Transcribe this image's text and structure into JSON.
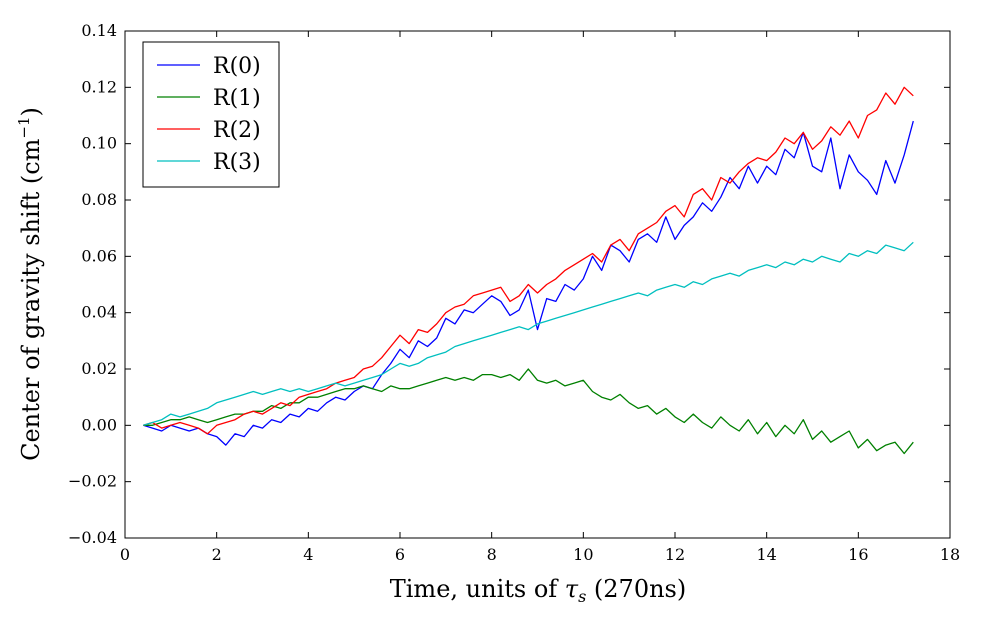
{
  "chart_data": {
    "type": "line",
    "title": "",
    "xlabel": "Time, units of τs (270ns)",
    "xlabel_parts": {
      "main": "Time, units of ",
      "symbol": "τ",
      "subscript": "s",
      "tail": " (270ns)"
    },
    "ylabel": "Center of gravity shift (cm−1)",
    "ylabel_parts": {
      "main": "Center of gravity shift (cm",
      "superscript": "−1",
      "tail": ")"
    },
    "xlim": [
      0,
      18
    ],
    "ylim": [
      -0.04,
      0.14
    ],
    "xticks": [
      "0",
      "2",
      "4",
      "6",
      "8",
      "10",
      "12",
      "14",
      "16",
      "18"
    ],
    "xtick_values": [
      0,
      2,
      4,
      6,
      8,
      10,
      12,
      14,
      16,
      18
    ],
    "yticks": [
      "−0.04",
      "−0.02",
      "0.00",
      "0.02",
      "0.04",
      "0.06",
      "0.08",
      "0.10",
      "0.12",
      "0.14"
    ],
    "ytick_values": [
      -0.04,
      -0.02,
      0.0,
      0.02,
      0.04,
      0.06,
      0.08,
      0.1,
      0.12,
      0.14
    ],
    "grid": false,
    "legend_position": "top-left",
    "x": [
      0.4,
      0.6,
      0.8,
      1.0,
      1.2,
      1.4,
      1.6,
      1.8,
      2.0,
      2.2,
      2.4,
      2.6,
      2.8,
      3.0,
      3.2,
      3.4,
      3.6,
      3.8,
      4.0,
      4.2,
      4.4,
      4.6,
      4.8,
      5.0,
      5.2,
      5.4,
      5.6,
      5.8,
      6.0,
      6.2,
      6.4,
      6.6,
      6.8,
      7.0,
      7.2,
      7.4,
      7.6,
      7.8,
      8.0,
      8.2,
      8.4,
      8.6,
      8.8,
      9.0,
      9.2,
      9.4,
      9.6,
      9.8,
      10.0,
      10.2,
      10.4,
      10.6,
      10.8,
      11.0,
      11.2,
      11.4,
      11.6,
      11.8,
      12.0,
      12.2,
      12.4,
      12.6,
      12.8,
      13.0,
      13.2,
      13.4,
      13.6,
      13.8,
      14.0,
      14.2,
      14.4,
      14.6,
      14.8,
      15.0,
      15.2,
      15.4,
      15.6,
      15.8,
      16.0,
      16.2,
      16.4,
      16.6,
      16.8,
      17.0,
      17.2
    ],
    "series": [
      {
        "name": "R(0)",
        "color": "#0000ff",
        "values": [
          0.0,
          -0.001,
          -0.002,
          0.0,
          -0.001,
          -0.002,
          -0.001,
          -0.003,
          -0.004,
          -0.007,
          -0.003,
          -0.004,
          0.0,
          -0.001,
          0.002,
          0.001,
          0.004,
          0.003,
          0.006,
          0.005,
          0.008,
          0.01,
          0.009,
          0.012,
          0.014,
          0.013,
          0.018,
          0.022,
          0.027,
          0.024,
          0.03,
          0.028,
          0.031,
          0.038,
          0.036,
          0.041,
          0.04,
          0.043,
          0.046,
          0.044,
          0.039,
          0.041,
          0.048,
          0.034,
          0.045,
          0.044,
          0.05,
          0.048,
          0.052,
          0.06,
          0.055,
          0.064,
          0.062,
          0.058,
          0.066,
          0.068,
          0.065,
          0.074,
          0.066,
          0.071,
          0.074,
          0.079,
          0.076,
          0.081,
          0.088,
          0.084,
          0.092,
          0.086,
          0.092,
          0.089,
          0.098,
          0.095,
          0.104,
          0.092,
          0.09,
          0.102,
          0.084,
          0.096,
          0.09,
          0.087,
          0.082,
          0.094,
          0.086,
          0.096,
          0.108
        ]
      },
      {
        "name": "R(1)",
        "color": "#008000",
        "values": [
          0.0,
          0.0,
          0.001,
          0.002,
          0.002,
          0.003,
          0.002,
          0.001,
          0.002,
          0.003,
          0.004,
          0.004,
          0.005,
          0.005,
          0.007,
          0.006,
          0.008,
          0.008,
          0.01,
          0.01,
          0.011,
          0.012,
          0.013,
          0.013,
          0.014,
          0.013,
          0.012,
          0.014,
          0.013,
          0.013,
          0.014,
          0.015,
          0.016,
          0.017,
          0.016,
          0.017,
          0.016,
          0.018,
          0.018,
          0.017,
          0.018,
          0.016,
          0.02,
          0.016,
          0.015,
          0.016,
          0.014,
          0.015,
          0.016,
          0.012,
          0.01,
          0.009,
          0.011,
          0.008,
          0.006,
          0.007,
          0.004,
          0.006,
          0.003,
          0.001,
          0.004,
          0.001,
          -0.001,
          0.003,
          0.0,
          -0.002,
          0.002,
          -0.003,
          0.001,
          -0.004,
          0.0,
          -0.003,
          0.002,
          -0.005,
          -0.002,
          -0.006,
          -0.004,
          -0.002,
          -0.008,
          -0.005,
          -0.009,
          -0.007,
          -0.006,
          -0.01,
          -0.006
        ]
      },
      {
        "name": "R(2)",
        "color": "#ff0000",
        "values": [
          0.0,
          0.001,
          -0.001,
          0.0,
          0.001,
          0.0,
          -0.001,
          -0.003,
          0.0,
          0.001,
          0.002,
          0.004,
          0.005,
          0.004,
          0.006,
          0.008,
          0.007,
          0.01,
          0.011,
          0.012,
          0.013,
          0.015,
          0.016,
          0.017,
          0.02,
          0.021,
          0.024,
          0.028,
          0.032,
          0.029,
          0.034,
          0.033,
          0.036,
          0.04,
          0.042,
          0.043,
          0.046,
          0.047,
          0.048,
          0.049,
          0.044,
          0.046,
          0.05,
          0.047,
          0.05,
          0.052,
          0.055,
          0.057,
          0.059,
          0.061,
          0.058,
          0.064,
          0.066,
          0.062,
          0.068,
          0.07,
          0.072,
          0.076,
          0.078,
          0.074,
          0.082,
          0.084,
          0.08,
          0.088,
          0.086,
          0.09,
          0.093,
          0.095,
          0.094,
          0.097,
          0.102,
          0.1,
          0.104,
          0.098,
          0.101,
          0.106,
          0.103,
          0.108,
          0.102,
          0.11,
          0.112,
          0.118,
          0.114,
          0.12,
          0.117
        ]
      },
      {
        "name": "R(3)",
        "color": "#00bfbf",
        "values": [
          0.0,
          0.001,
          0.002,
          0.004,
          0.003,
          0.004,
          0.005,
          0.006,
          0.008,
          0.009,
          0.01,
          0.011,
          0.012,
          0.011,
          0.012,
          0.013,
          0.012,
          0.013,
          0.012,
          0.013,
          0.014,
          0.015,
          0.014,
          0.015,
          0.016,
          0.017,
          0.018,
          0.02,
          0.022,
          0.021,
          0.022,
          0.024,
          0.025,
          0.026,
          0.028,
          0.029,
          0.03,
          0.031,
          0.032,
          0.033,
          0.034,
          0.035,
          0.034,
          0.036,
          0.037,
          0.038,
          0.039,
          0.04,
          0.041,
          0.042,
          0.043,
          0.044,
          0.045,
          0.046,
          0.047,
          0.046,
          0.048,
          0.049,
          0.05,
          0.049,
          0.051,
          0.05,
          0.052,
          0.053,
          0.054,
          0.053,
          0.055,
          0.056,
          0.057,
          0.056,
          0.058,
          0.057,
          0.059,
          0.058,
          0.06,
          0.059,
          0.058,
          0.061,
          0.06,
          0.062,
          0.061,
          0.064,
          0.063,
          0.062,
          0.065
        ]
      }
    ]
  }
}
